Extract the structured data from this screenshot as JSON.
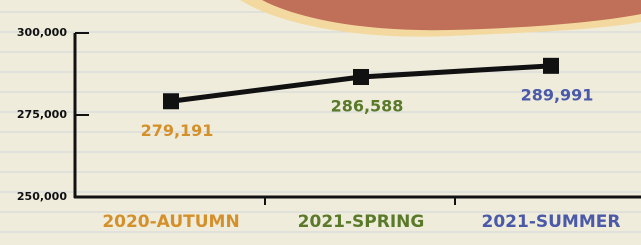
{
  "chart_data": {
    "type": "line",
    "categories": [
      "2020-AUTUMN",
      "2021-SPRING",
      "2021-SUMMER"
    ],
    "series": [
      {
        "color": "#111111",
        "values": [
          279191,
          286588,
          289991
        ],
        "value_labels": [
          "279,191",
          "286,588",
          "289,991"
        ]
      }
    ],
    "label_colors": [
      "#d4902a",
      "#5a7a2a",
      "#4a5aa8"
    ],
    "ylim": [
      250000,
      300000
    ],
    "yticks": [
      {
        "value": 250000,
        "label": "250,000"
      },
      {
        "value": 275000,
        "label": "275,000"
      },
      {
        "value": 300000,
        "label": "300,000"
      }
    ]
  }
}
